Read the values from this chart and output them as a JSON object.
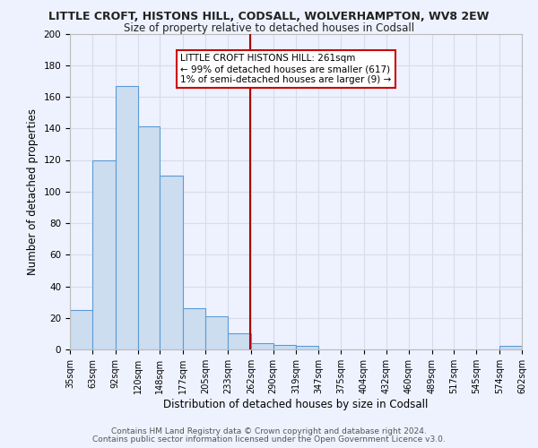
{
  "title": "LITTLE CROFT, HISTONS HILL, CODSALL, WOLVERHAMPTON, WV8 2EW",
  "subtitle": "Size of property relative to detached houses in Codsall",
  "xlabel": "Distribution of detached houses by size in Codsall",
  "ylabel": "Number of detached properties",
  "bar_edges": [
    35,
    63,
    92,
    120,
    148,
    177,
    205,
    233,
    262,
    290,
    319,
    347,
    375,
    404,
    432,
    460,
    489,
    517,
    545,
    574,
    602
  ],
  "bar_heights": [
    25,
    120,
    167,
    141,
    110,
    26,
    21,
    10,
    4,
    3,
    2,
    0,
    0,
    0,
    0,
    0,
    0,
    0,
    0,
    2
  ],
  "bar_color": "#ccddf0",
  "bar_edge_color": "#5b9bd5",
  "vline_x": 261,
  "vline_color": "#aa0000",
  "annotation_title": "LITTLE CROFT HISTONS HILL: 261sqm",
  "annotation_line1": "← 99% of detached houses are smaller (617)",
  "annotation_line2": "1% of semi-detached houses are larger (9) →",
  "annotation_box_color": "#ffffff",
  "annotation_box_edge": "#cc0000",
  "ylim": [
    0,
    200
  ],
  "yticks": [
    0,
    20,
    40,
    60,
    80,
    100,
    120,
    140,
    160,
    180,
    200
  ],
  "background_color": "#eef2ff",
  "grid_color": "#d8dce8",
  "footer_line1": "Contains HM Land Registry data © Crown copyright and database right 2024.",
  "footer_line2": "Contains public sector information licensed under the Open Government Licence v3.0."
}
